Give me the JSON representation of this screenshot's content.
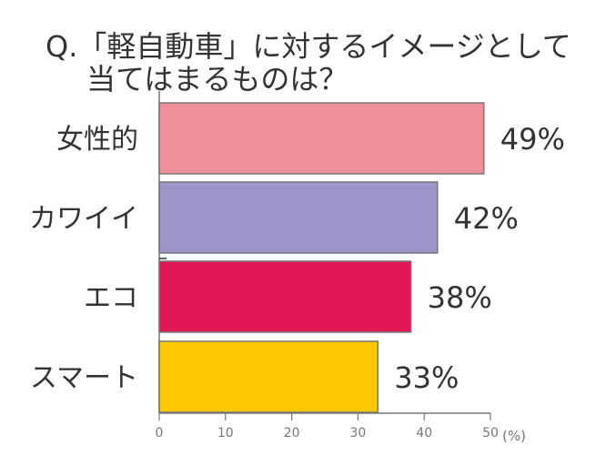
{
  "chart_data": {
    "type": "bar",
    "orientation": "horizontal",
    "title_line1": "Q.「軽自動車」に対するイメージとして",
    "title_line2": "当てはまるものは？",
    "categories": [
      "女性的",
      "カワイイ",
      "エコ",
      "スマート"
    ],
    "values": [
      49,
      42,
      38,
      33
    ],
    "value_labels": [
      "49%",
      "42%",
      "38%",
      "33%"
    ],
    "colors": [
      "#ee8f99",
      "#9b95c9",
      "#e01655",
      "#fcc800"
    ],
    "xlim": [
      0,
      50
    ],
    "ticks": [
      "0",
      "10",
      "20",
      "30",
      "40",
      "50"
    ],
    "unit_label": "(%)",
    "grid": false
  }
}
